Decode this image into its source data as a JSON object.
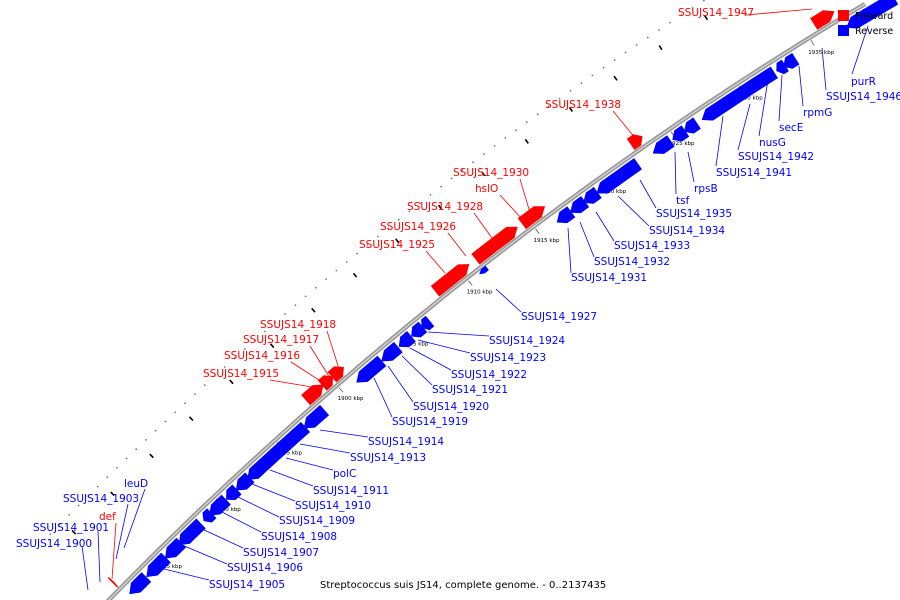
{
  "caption": "Streptococcus suis JS14, complete genome. - 0..2137435",
  "legend": [
    {
      "label": "Forward",
      "color": "#ff0000"
    },
    {
      "label": "Reverse",
      "color": "#0000ff"
    }
  ],
  "colors": {
    "forward": "#ff0000",
    "reverse": "#0000ff",
    "backbone": "#999999"
  },
  "ticks": [
    "1885 kbp",
    "1890 kbp",
    "1895 kbp",
    "1900 kbp",
    "1905 kbp",
    "1910 kbp",
    "1915 kbp",
    "1920 kbp",
    "1925 kbp",
    "1930 kbp",
    "1935 kbp"
  ],
  "forward_labels": [
    "SSUJS14_1947",
    "SSUJS14_1938",
    "SSUJS14_1930",
    "hslO",
    "SSUJS14_1928",
    "SSUJS14_1926",
    "SSUJS14_1925",
    "SSUJS14_1918",
    "SSUJS14_1917",
    "SSUJS14_1916",
    "SSUJS14_1915",
    "def"
  ],
  "reverse_labels": [
    "purR",
    "SSUJS14_1946",
    "rpmG",
    "secE",
    "nusG",
    "SSUJS14_1942",
    "SSUJS14_1941",
    "rpsB",
    "tsf",
    "SSUJS14_1935",
    "SSUJS14_1934",
    "SSUJS14_1933",
    "SSUJS14_1932",
    "SSUJS14_1931",
    "SSUJS14_1927",
    "SSUJS14_1924",
    "SSUJS14_1923",
    "SSUJS14_1922",
    "SSUJS14_1921",
    "SSUJS14_1920",
    "SSUJS14_1919",
    "SSUJS14_1914",
    "SSUJS14_1913",
    "polC",
    "SSUJS14_1911",
    "SSUJS14_1910",
    "SSUJS14_1909",
    "SSUJS14_1908",
    "SSUJS14_1907",
    "SSUJS14_1906",
    "SSUJS14_1905",
    "leuD",
    "SSUJS14_1903",
    "SSUJS14_1901",
    "SSUJS14_1900"
  ]
}
